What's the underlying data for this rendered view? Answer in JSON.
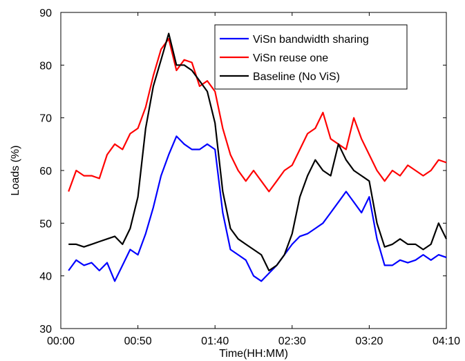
{
  "chart_data": {
    "type": "line",
    "xlabel": "Time(HH:MM)",
    "ylabel": "Loads (%)",
    "xlim": [
      "00:00",
      "04:10"
    ],
    "ylim": [
      30,
      90
    ],
    "x_ticks": [
      "00:00",
      "00:50",
      "01:40",
      "02:30",
      "03:20",
      "04:10"
    ],
    "y_ticks": [
      "30",
      "40",
      "50",
      "60",
      "70",
      "80",
      "90"
    ],
    "grid": false,
    "legend_position": "top-right",
    "x_unit": "minutes since 00:00",
    "series": [
      {
        "name": "ViSn bandwidth sharing",
        "color": "#0000ff",
        "x": [
          5,
          10,
          15,
          20,
          25,
          30,
          35,
          40,
          45,
          50,
          55,
          60,
          65,
          70,
          75,
          80,
          85,
          90,
          95,
          100,
          105,
          110,
          115,
          120,
          125,
          130,
          135,
          140,
          145,
          150,
          155,
          160,
          165,
          170,
          175,
          180,
          185,
          190,
          195,
          200,
          205,
          210,
          215,
          220,
          225,
          230,
          235,
          240,
          245,
          250
        ],
        "y": [
          41,
          43,
          42,
          42.5,
          41,
          42.5,
          39,
          42,
          45,
          44,
          48,
          53,
          59,
          63,
          66.5,
          65,
          64,
          64,
          65,
          64,
          52,
          45,
          44,
          43,
          40,
          39,
          40.5,
          42,
          44,
          46,
          47.5,
          48,
          49,
          50,
          52,
          54,
          56,
          54,
          52,
          55,
          47,
          42,
          42,
          43,
          42.5,
          43,
          44,
          43,
          44,
          43.5
        ]
      },
      {
        "name": "ViSn reuse one",
        "color": "#ff0000",
        "x": [
          5,
          10,
          15,
          20,
          25,
          30,
          35,
          40,
          45,
          50,
          55,
          60,
          65,
          70,
          75,
          80,
          85,
          90,
          95,
          100,
          105,
          110,
          115,
          120,
          125,
          130,
          135,
          140,
          145,
          150,
          155,
          160,
          165,
          170,
          175,
          180,
          185,
          190,
          195,
          200,
          205,
          210,
          215,
          220,
          225,
          230,
          235,
          240,
          245,
          250
        ],
        "y": [
          56,
          60,
          59,
          59,
          58.5,
          63,
          65,
          64,
          67,
          68,
          72,
          78,
          83,
          85,
          79,
          81,
          80.5,
          76,
          77,
          75,
          68,
          63,
          60,
          58,
          60,
          58,
          56,
          58,
          60,
          61,
          64,
          67,
          68,
          71,
          66,
          65,
          64,
          70,
          66,
          63,
          60,
          58,
          60,
          59,
          61,
          60,
          59,
          60,
          62,
          61.5
        ]
      },
      {
        "name": "Baseline (No ViS)",
        "color": "#000000",
        "x": [
          5,
          10,
          15,
          20,
          25,
          30,
          35,
          40,
          45,
          50,
          55,
          60,
          65,
          70,
          75,
          80,
          85,
          90,
          95,
          100,
          105,
          110,
          115,
          120,
          125,
          130,
          135,
          140,
          145,
          150,
          155,
          160,
          165,
          170,
          175,
          180,
          185,
          190,
          195,
          200,
          205,
          210,
          215,
          220,
          225,
          230,
          235,
          240,
          245,
          250
        ],
        "y": [
          46,
          46,
          45.5,
          46,
          46.5,
          47,
          47.5,
          46,
          49,
          55,
          68,
          76,
          81,
          86,
          80,
          80,
          79,
          77,
          75,
          69,
          56,
          49,
          47,
          46,
          45,
          44,
          41,
          42,
          44,
          48,
          55,
          59,
          62,
          60,
          59,
          65,
          62,
          60,
          59,
          58,
          50,
          45.5,
          46,
          47,
          46,
          46,
          45,
          46,
          50,
          47
        ]
      }
    ]
  }
}
